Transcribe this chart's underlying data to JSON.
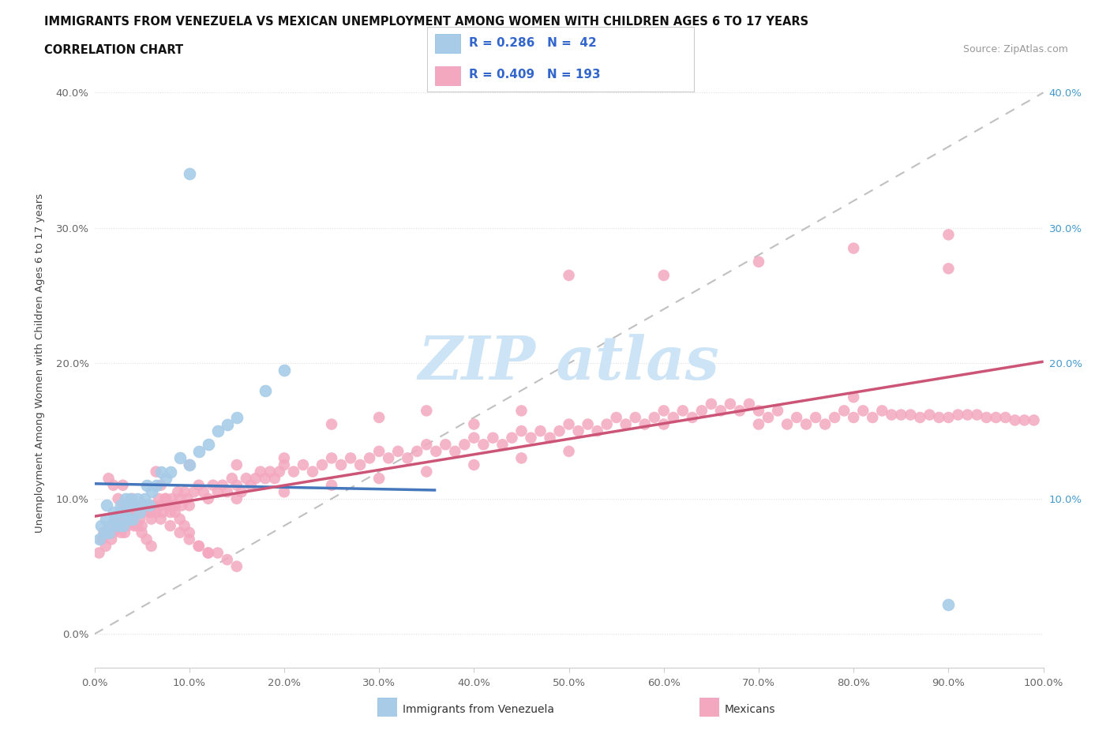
{
  "title_line1": "IMMIGRANTS FROM VENEZUELA VS MEXICAN UNEMPLOYMENT AMONG WOMEN WITH CHILDREN AGES 6 TO 17 YEARS",
  "title_line2": "CORRELATION CHART",
  "source_text": "Source: ZipAtlas.com",
  "ylabel": "Unemployment Among Women with Children Ages 6 to 17 years",
  "xlim": [
    0.0,
    1.0
  ],
  "ylim": [
    -0.025,
    0.425
  ],
  "xticks": [
    0.0,
    0.1,
    0.2,
    0.3,
    0.4,
    0.5,
    0.6,
    0.7,
    0.8,
    0.9,
    1.0
  ],
  "xtick_labels": [
    "0.0%",
    "10.0%",
    "20.0%",
    "30.0%",
    "40.0%",
    "50.0%",
    "60.0%",
    "70.0%",
    "80.0%",
    "90.0%",
    "100.0%"
  ],
  "yticks": [
    0.0,
    0.1,
    0.2,
    0.3,
    0.4
  ],
  "ytick_labels": [
    "0.0%",
    "10.0%",
    "20.0%",
    "30.0%",
    "40.0%"
  ],
  "color_venezuela": "#a8cce8",
  "color_mexico": "#f4a8c0",
  "line_color_venezuela": "#4477bb",
  "line_color_mexico": "#cc5577",
  "dash_color": "#c0c0c0",
  "right_tick_color": "#4499cc",
  "legend_text_color": "#3366cc",
  "watermark_color": "#cce4f5",
  "venezuela_x": [
    0.005,
    0.007,
    0.01,
    0.012,
    0.013,
    0.015,
    0.017,
    0.02,
    0.022,
    0.025,
    0.027,
    0.028,
    0.03,
    0.032,
    0.033,
    0.035,
    0.037,
    0.038,
    0.04,
    0.042,
    0.045,
    0.048,
    0.05,
    0.053,
    0.055,
    0.058,
    0.06,
    0.065,
    0.07,
    0.075,
    0.08,
    0.09,
    0.1,
    0.11,
    0.12,
    0.13,
    0.14,
    0.15,
    0.18,
    0.2,
    0.1,
    0.9
  ],
  "venezuela_y": [
    0.07,
    0.08,
    0.075,
    0.085,
    0.095,
    0.075,
    0.08,
    0.09,
    0.085,
    0.08,
    0.09,
    0.095,
    0.08,
    0.09,
    0.1,
    0.085,
    0.095,
    0.1,
    0.085,
    0.095,
    0.1,
    0.09,
    0.095,
    0.1,
    0.11,
    0.095,
    0.105,
    0.11,
    0.12,
    0.115,
    0.12,
    0.13,
    0.125,
    0.135,
    0.14,
    0.15,
    0.155,
    0.16,
    0.18,
    0.195,
    0.34,
    0.022
  ],
  "mexico_x": [
    0.005,
    0.008,
    0.01,
    0.012,
    0.015,
    0.018,
    0.02,
    0.022,
    0.025,
    0.028,
    0.03,
    0.032,
    0.035,
    0.038,
    0.04,
    0.042,
    0.045,
    0.048,
    0.05,
    0.052,
    0.055,
    0.058,
    0.06,
    0.062,
    0.065,
    0.068,
    0.07,
    0.072,
    0.075,
    0.078,
    0.08,
    0.082,
    0.085,
    0.088,
    0.09,
    0.092,
    0.095,
    0.098,
    0.1,
    0.105,
    0.11,
    0.115,
    0.12,
    0.125,
    0.13,
    0.135,
    0.14,
    0.145,
    0.15,
    0.155,
    0.16,
    0.165,
    0.17,
    0.175,
    0.18,
    0.185,
    0.19,
    0.195,
    0.2,
    0.21,
    0.22,
    0.23,
    0.24,
    0.25,
    0.26,
    0.27,
    0.28,
    0.29,
    0.3,
    0.31,
    0.32,
    0.33,
    0.34,
    0.35,
    0.36,
    0.37,
    0.38,
    0.39,
    0.4,
    0.41,
    0.42,
    0.43,
    0.44,
    0.45,
    0.46,
    0.47,
    0.48,
    0.49,
    0.5,
    0.51,
    0.52,
    0.53,
    0.54,
    0.55,
    0.56,
    0.57,
    0.58,
    0.59,
    0.6,
    0.61,
    0.62,
    0.63,
    0.64,
    0.65,
    0.66,
    0.67,
    0.68,
    0.69,
    0.7,
    0.71,
    0.72,
    0.73,
    0.74,
    0.75,
    0.76,
    0.77,
    0.78,
    0.79,
    0.8,
    0.81,
    0.82,
    0.83,
    0.84,
    0.85,
    0.86,
    0.87,
    0.88,
    0.89,
    0.9,
    0.91,
    0.92,
    0.93,
    0.94,
    0.95,
    0.96,
    0.97,
    0.98,
    0.99,
    0.015,
    0.02,
    0.025,
    0.03,
    0.035,
    0.04,
    0.045,
    0.05,
    0.055,
    0.06,
    0.065,
    0.07,
    0.075,
    0.08,
    0.085,
    0.09,
    0.095,
    0.1,
    0.11,
    0.12,
    0.13,
    0.14,
    0.15,
    0.03,
    0.04,
    0.05,
    0.06,
    0.07,
    0.08,
    0.09,
    0.1,
    0.11,
    0.12,
    0.15,
    0.2,
    0.25,
    0.3,
    0.35,
    0.4,
    0.45,
    0.5,
    0.6,
    0.7,
    0.8,
    0.9,
    0.5,
    0.6,
    0.7,
    0.8,
    0.9,
    0.25,
    0.3,
    0.35,
    0.4,
    0.45,
    0.1,
    0.15,
    0.2
  ],
  "mexico_y": [
    0.06,
    0.07,
    0.075,
    0.065,
    0.08,
    0.07,
    0.075,
    0.085,
    0.08,
    0.075,
    0.085,
    0.075,
    0.08,
    0.09,
    0.085,
    0.08,
    0.09,
    0.085,
    0.08,
    0.09,
    0.095,
    0.09,
    0.085,
    0.095,
    0.09,
    0.1,
    0.095,
    0.09,
    0.1,
    0.095,
    0.09,
    0.1,
    0.095,
    0.105,
    0.1,
    0.095,
    0.105,
    0.1,
    0.095,
    0.105,
    0.11,
    0.105,
    0.1,
    0.11,
    0.105,
    0.11,
    0.105,
    0.115,
    0.11,
    0.105,
    0.115,
    0.11,
    0.115,
    0.12,
    0.115,
    0.12,
    0.115,
    0.12,
    0.125,
    0.12,
    0.125,
    0.12,
    0.125,
    0.13,
    0.125,
    0.13,
    0.125,
    0.13,
    0.135,
    0.13,
    0.135,
    0.13,
    0.135,
    0.14,
    0.135,
    0.14,
    0.135,
    0.14,
    0.145,
    0.14,
    0.145,
    0.14,
    0.145,
    0.15,
    0.145,
    0.15,
    0.145,
    0.15,
    0.155,
    0.15,
    0.155,
    0.15,
    0.155,
    0.16,
    0.155,
    0.16,
    0.155,
    0.16,
    0.165,
    0.16,
    0.165,
    0.16,
    0.165,
    0.17,
    0.165,
    0.17,
    0.165,
    0.17,
    0.155,
    0.16,
    0.165,
    0.155,
    0.16,
    0.155,
    0.16,
    0.155,
    0.16,
    0.165,
    0.16,
    0.165,
    0.16,
    0.165,
    0.162,
    0.162,
    0.162,
    0.16,
    0.162,
    0.16,
    0.16,
    0.162,
    0.162,
    0.162,
    0.16,
    0.16,
    0.16,
    0.158,
    0.158,
    0.158,
    0.115,
    0.11,
    0.1,
    0.095,
    0.09,
    0.085,
    0.08,
    0.075,
    0.07,
    0.065,
    0.12,
    0.11,
    0.1,
    0.095,
    0.09,
    0.085,
    0.08,
    0.075,
    0.065,
    0.06,
    0.06,
    0.055,
    0.05,
    0.11,
    0.1,
    0.095,
    0.09,
    0.085,
    0.08,
    0.075,
    0.07,
    0.065,
    0.06,
    0.1,
    0.105,
    0.11,
    0.115,
    0.12,
    0.125,
    0.13,
    0.135,
    0.155,
    0.165,
    0.175,
    0.27,
    0.265,
    0.265,
    0.275,
    0.285,
    0.295,
    0.155,
    0.16,
    0.165,
    0.155,
    0.165,
    0.125,
    0.125,
    0.13
  ]
}
